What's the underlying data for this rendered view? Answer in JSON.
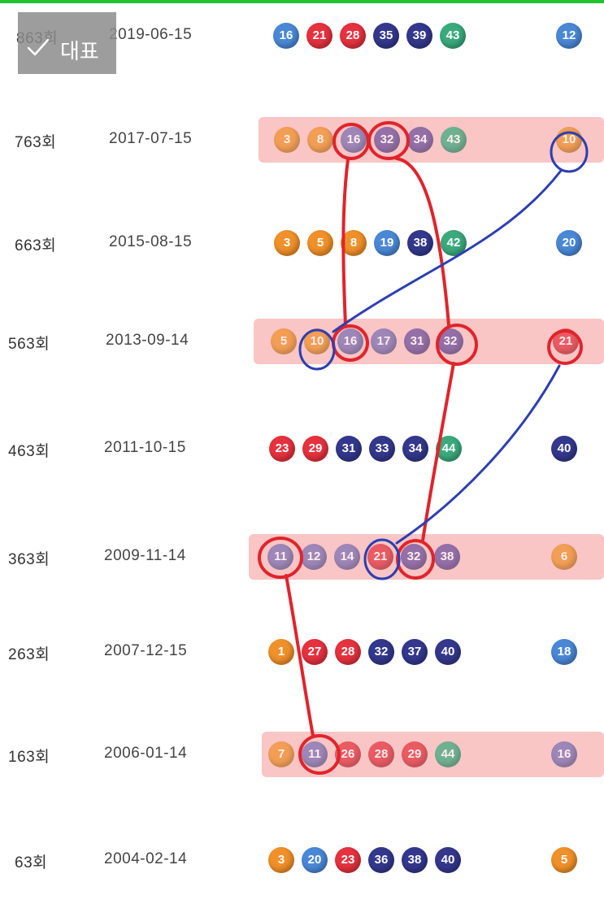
{
  "badge": {
    "label": "대표",
    "icon": "check-icon"
  },
  "rows": [
    {
      "round": "863회",
      "date": "2019-06-15",
      "highlight": false,
      "balls": [
        {
          "n": "16",
          "c": "blue"
        },
        {
          "n": "21",
          "c": "red"
        },
        {
          "n": "28",
          "c": "red"
        },
        {
          "n": "35",
          "c": "navy"
        },
        {
          "n": "39",
          "c": "navy"
        },
        {
          "n": "43",
          "c": "green"
        }
      ],
      "bonus": {
        "n": "12",
        "c": "blue"
      }
    },
    {
      "round": "763회",
      "date": "2017-07-15",
      "highlight": true,
      "balls": [
        {
          "n": "3",
          "c": "orange"
        },
        {
          "n": "8",
          "c": "orange"
        },
        {
          "n": "16",
          "c": "violet"
        },
        {
          "n": "32",
          "c": "purple"
        },
        {
          "n": "34",
          "c": "purple"
        },
        {
          "n": "43",
          "c": "green"
        }
      ],
      "bonus": {
        "n": "10",
        "c": "orange"
      }
    },
    {
      "round": "663회",
      "date": "2015-08-15",
      "highlight": false,
      "balls": [
        {
          "n": "3",
          "c": "orange"
        },
        {
          "n": "5",
          "c": "orange"
        },
        {
          "n": "8",
          "c": "orange"
        },
        {
          "n": "19",
          "c": "blue"
        },
        {
          "n": "38",
          "c": "navy"
        },
        {
          "n": "42",
          "c": "green"
        }
      ],
      "bonus": {
        "n": "20",
        "c": "blue"
      }
    },
    {
      "round": "563회",
      "date": "2013-09-14",
      "highlight": true,
      "balls": [
        {
          "n": "5",
          "c": "orange"
        },
        {
          "n": "10",
          "c": "orange"
        },
        {
          "n": "16",
          "c": "violet"
        },
        {
          "n": "17",
          "c": "violet"
        },
        {
          "n": "31",
          "c": "purple"
        },
        {
          "n": "32",
          "c": "purple"
        }
      ],
      "bonus": {
        "n": "21",
        "c": "red"
      }
    },
    {
      "round": "463회",
      "date": "2011-10-15",
      "highlight": false,
      "balls": [
        {
          "n": "23",
          "c": "red"
        },
        {
          "n": "29",
          "c": "red"
        },
        {
          "n": "31",
          "c": "navy"
        },
        {
          "n": "33",
          "c": "navy"
        },
        {
          "n": "34",
          "c": "navy"
        },
        {
          "n": "44",
          "c": "green"
        }
      ],
      "bonus": {
        "n": "40",
        "c": "navy"
      }
    },
    {
      "round": "363회",
      "date": "2009-11-14",
      "highlight": true,
      "balls": [
        {
          "n": "11",
          "c": "violet"
        },
        {
          "n": "12",
          "c": "violet"
        },
        {
          "n": "14",
          "c": "violet"
        },
        {
          "n": "21",
          "c": "red"
        },
        {
          "n": "32",
          "c": "purple"
        },
        {
          "n": "38",
          "c": "purple"
        }
      ],
      "bonus": {
        "n": "6",
        "c": "orange"
      }
    },
    {
      "round": "263회",
      "date": "2007-12-15",
      "highlight": false,
      "balls": [
        {
          "n": "1",
          "c": "orange"
        },
        {
          "n": "27",
          "c": "red"
        },
        {
          "n": "28",
          "c": "red"
        },
        {
          "n": "32",
          "c": "navy"
        },
        {
          "n": "37",
          "c": "navy"
        },
        {
          "n": "40",
          "c": "navy"
        }
      ],
      "bonus": {
        "n": "18",
        "c": "blue"
      }
    },
    {
      "round": "163회",
      "date": "2006-01-14",
      "highlight": true,
      "balls": [
        {
          "n": "7",
          "c": "orange"
        },
        {
          "n": "11",
          "c": "violet"
        },
        {
          "n": "26",
          "c": "red"
        },
        {
          "n": "28",
          "c": "red"
        },
        {
          "n": "29",
          "c": "red"
        },
        {
          "n": "44",
          "c": "green"
        }
      ],
      "bonus": {
        "n": "16",
        "c": "violet"
      }
    },
    {
      "round": "63회",
      "date": "2004-02-14",
      "highlight": false,
      "balls": [
        {
          "n": "3",
          "c": "orange"
        },
        {
          "n": "20",
          "c": "blue"
        },
        {
          "n": "23",
          "c": "red"
        },
        {
          "n": "36",
          "c": "navy"
        },
        {
          "n": "38",
          "c": "navy"
        },
        {
          "n": "40",
          "c": "navy"
        }
      ],
      "bonus": {
        "n": "5",
        "c": "orange"
      }
    }
  ]
}
